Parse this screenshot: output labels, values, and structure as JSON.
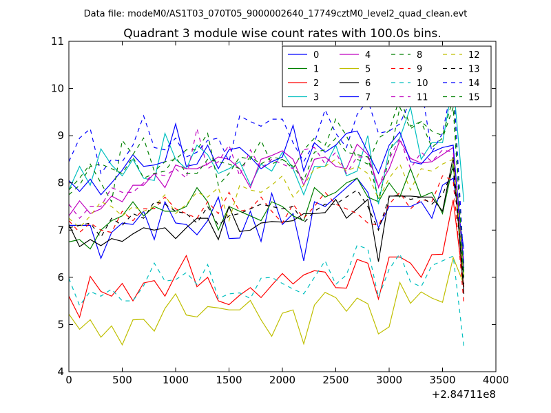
{
  "suptitle": "Data file: modeM0/AS1T03_070T05_9000002640_17749cztM0_level2_quad_clean.evt",
  "chart_data": {
    "type": "line",
    "title": "Quadrant 3 module wise count rates with 100.0s bins.",
    "xlabel": "",
    "ylabel": "",
    "x_offset_label": "+2.84711e8",
    "xlim": [
      0,
      4000
    ],
    "ylim": [
      4,
      11
    ],
    "xticks": [
      0,
      500,
      1000,
      1500,
      2000,
      2500,
      3000,
      3500,
      4000
    ],
    "yticks": [
      4,
      5,
      6,
      7,
      8,
      9,
      10,
      11
    ],
    "grid": false,
    "legend_position": "top-right",
    "x": [
      0,
      100,
      200,
      300,
      400,
      500,
      600,
      700,
      800,
      900,
      1000,
      1100,
      1200,
      1300,
      1400,
      1500,
      1600,
      1700,
      1800,
      1900,
      2000,
      2100,
      2200,
      2300,
      2400,
      2500,
      2600,
      2700,
      2800,
      2900,
      3000,
      3100,
      3200,
      3300,
      3400,
      3500,
      3600,
      3700
    ],
    "series": [
      {
        "name": "0",
        "color": "#0000ff",
        "dash": "solid",
        "values": [
          7.1,
          7.1,
          7.1,
          6.4,
          6.95,
          7.15,
          7.12,
          7.4,
          6.8,
          7.6,
          7.15,
          7.12,
          6.9,
          7.2,
          7.7,
          6.82,
          6.83,
          7.4,
          6.76,
          7.78,
          7.12,
          7.35,
          6.35,
          7.6,
          7.5,
          7.7,
          7.9,
          8.1,
          7.8,
          7.05,
          7.5,
          7.5,
          7.5,
          7.6,
          7.25,
          7.95,
          8.1,
          6.6
        ]
      },
      {
        "name": "1",
        "color": "#008000",
        "dash": "solid",
        "values": [
          6.75,
          6.8,
          6.6,
          7.0,
          7.2,
          7.3,
          7.6,
          7.3,
          7.5,
          7.4,
          7.4,
          7.5,
          7.9,
          7.6,
          7.0,
          7.5,
          7.4,
          7.3,
          7.2,
          7.6,
          7.5,
          7.3,
          7.2,
          7.9,
          7.7,
          7.8,
          8.0,
          8.1,
          7.7,
          7.6,
          8.0,
          7.7,
          8.3,
          7.7,
          7.8,
          7.35,
          8.4,
          6.0
        ]
      },
      {
        "name": "2",
        "color": "#ff0000",
        "dash": "solid",
        "values": [
          5.6,
          5.15,
          6.02,
          5.7,
          5.6,
          5.87,
          5.5,
          5.88,
          5.93,
          5.6,
          6.05,
          6.46,
          5.8,
          6.0,
          5.5,
          5.42,
          5.62,
          5.78,
          5.57,
          5.83,
          6.08,
          5.86,
          6.05,
          6.14,
          6.11,
          5.78,
          5.77,
          6.38,
          6.3,
          5.54,
          6.43,
          6.43,
          6.3,
          6.0,
          6.48,
          6.49,
          7.64,
          5.8
        ]
      },
      {
        "name": "3",
        "color": "#00bfbf",
        "dash": "solid",
        "values": [
          7.85,
          8.35,
          7.95,
          8.72,
          8.38,
          8.15,
          8.5,
          8.1,
          8.05,
          9.05,
          8.5,
          8.3,
          8.8,
          8.6,
          8.2,
          8.3,
          8.45,
          7.95,
          8.4,
          8.25,
          8.65,
          8.3,
          7.75,
          8.35,
          8.35,
          8.8,
          8.15,
          8.25,
          9.0,
          7.55,
          8.7,
          8.95,
          9.6,
          8.5,
          8.85,
          8.85,
          10.15,
          7.6
        ]
      },
      {
        "name": "4",
        "color": "#bf00bf",
        "dash": "solid",
        "values": [
          7.3,
          7.62,
          7.35,
          7.45,
          7.72,
          7.6,
          7.95,
          7.95,
          8.2,
          7.9,
          8.38,
          8.3,
          8.3,
          8.4,
          8.55,
          8.5,
          8.3,
          7.9,
          8.5,
          8.58,
          8.68,
          8.5,
          7.95,
          8.5,
          8.55,
          8.35,
          8.3,
          8.82,
          8.6,
          7.92,
          8.3,
          8.9,
          8.52,
          8.42,
          8.45,
          8.6,
          8.75,
          6.3
        ]
      },
      {
        "name": "5",
        "color": "#bfbf00",
        "dash": "solid",
        "values": [
          5.22,
          4.9,
          5.1,
          4.73,
          4.97,
          4.57,
          5.1,
          5.11,
          4.86,
          5.34,
          5.65,
          5.2,
          5.16,
          5.38,
          5.35,
          5.31,
          5.31,
          5.51,
          5.1,
          4.75,
          5.24,
          5.31,
          4.59,
          5.41,
          5.68,
          5.57,
          5.28,
          5.56,
          5.44,
          4.8,
          4.95,
          5.89,
          5.45,
          5.69,
          5.56,
          5.47,
          6.42,
          5.85
        ]
      },
      {
        "name": "6",
        "color": "#000000",
        "dash": "solid",
        "values": [
          7.12,
          6.65,
          6.8,
          6.67,
          6.82,
          6.76,
          6.92,
          7.05,
          7.0,
          7.05,
          6.82,
          7.05,
          7.25,
          7.25,
          6.8,
          7.5,
          6.97,
          7.0,
          7.15,
          7.18,
          7.17,
          7.2,
          7.35,
          7.35,
          7.37,
          7.65,
          7.25,
          7.45,
          7.65,
          6.33,
          7.72,
          7.72,
          7.72,
          7.7,
          7.7,
          7.4,
          8.55,
          5.65
        ]
      },
      {
        "name": "7",
        "color": "#0000ff",
        "dash": "solid",
        "values": [
          8.05,
          7.82,
          8.08,
          7.75,
          8.0,
          8.27,
          8.6,
          8.35,
          8.38,
          8.45,
          9.25,
          8.35,
          8.4,
          8.8,
          8.3,
          8.7,
          8.75,
          8.55,
          8.3,
          8.45,
          8.55,
          9.22,
          8.25,
          8.85,
          8.65,
          8.8,
          9.05,
          9.1,
          8.65,
          8.2,
          8.8,
          9.08,
          8.45,
          8.4,
          8.65,
          8.75,
          8.8,
          6.2
        ]
      },
      {
        "name": "8",
        "color": "#008000",
        "dash": "dashed",
        "values": [
          7.85,
          8.1,
          8.4,
          8.0,
          7.6,
          8.9,
          8.6,
          8.95,
          8.25,
          8.45,
          8.5,
          8.7,
          8.7,
          9.05,
          7.95,
          8.2,
          8.55,
          8.5,
          8.9,
          8.4,
          8.5,
          8.3,
          8.7,
          8.95,
          8.8,
          9.35,
          9.0,
          8.5,
          8.4,
          8.95,
          9.1,
          9.8,
          9.2,
          9.3,
          9.1,
          9.0,
          9.8,
          6.1
        ]
      },
      {
        "name": "9",
        "color": "#ff0000",
        "dash": "dashed",
        "values": [
          7.2,
          6.95,
          7.15,
          7.0,
          6.95,
          7.4,
          7.2,
          7.45,
          7.45,
          7.7,
          7.45,
          7.35,
          7.25,
          7.6,
          7.35,
          7.8,
          7.4,
          7.45,
          7.7,
          7.4,
          7.15,
          7.55,
          7.25,
          7.5,
          7.8,
          7.55,
          7.45,
          7.35,
          7.15,
          7.1,
          7.55,
          7.8,
          7.45,
          7.65,
          7.6,
          8.15,
          8.05,
          5.45
        ]
      },
      {
        "name": "10",
        "color": "#00bfbf",
        "dash": "dashed",
        "values": [
          5.98,
          5.4,
          5.7,
          5.6,
          5.75,
          5.5,
          5.5,
          5.82,
          6.3,
          5.92,
          5.95,
          6.1,
          5.85,
          6.27,
          5.55,
          5.65,
          5.67,
          5.55,
          5.98,
          6.0,
          5.87,
          5.75,
          5.65,
          6.0,
          6.35,
          5.85,
          6.05,
          6.68,
          6.6,
          5.58,
          6.17,
          6.5,
          5.9,
          5.8,
          6.25,
          6.35,
          6.45,
          4.52
        ]
      },
      {
        "name": "11",
        "color": "#bf00bf",
        "dash": "dashed",
        "values": [
          7.55,
          7.25,
          7.5,
          7.5,
          7.9,
          7.8,
          7.8,
          8.0,
          8.2,
          8.15,
          8.3,
          8.1,
          9.15,
          8.3,
          8.45,
          8.8,
          8.15,
          8.7,
          8.3,
          8.5,
          8.4,
          8.3,
          8.7,
          8.75,
          8.4,
          8.65,
          8.2,
          8.55,
          8.55,
          7.9,
          8.5,
          8.95,
          8.3,
          8.65,
          8.45,
          8.7,
          8.65,
          6.15
        ]
      },
      {
        "name": "12",
        "color": "#bfbf00",
        "dash": "dashed",
        "values": [
          7.25,
          7.05,
          7.3,
          7.6,
          7.5,
          7.3,
          7.5,
          7.4,
          7.5,
          7.75,
          7.35,
          7.55,
          7.8,
          7.7,
          7.9,
          7.2,
          7.95,
          7.85,
          7.8,
          7.95,
          8.15,
          7.7,
          7.95,
          8.3,
          8.35,
          8.5,
          8.25,
          8.35,
          8.2,
          7.65,
          8.1,
          8.4,
          7.85,
          8.3,
          8.25,
          8.4,
          8.5,
          6.05
        ]
      },
      {
        "name": "13",
        "color": "#000000",
        "dash": "dashed",
        "values": [
          7.05,
          7.1,
          7.15,
          6.85,
          7.25,
          7.1,
          7.35,
          7.25,
          7.6,
          7.55,
          7.4,
          7.35,
          7.15,
          7.5,
          7.1,
          7.3,
          7.35,
          7.45,
          7.55,
          7.5,
          7.45,
          7.5,
          7.15,
          7.4,
          7.55,
          7.55,
          7.7,
          7.85,
          7.5,
          7.0,
          7.7,
          7.75,
          7.65,
          7.7,
          7.55,
          7.75,
          8.3,
          5.85
        ]
      },
      {
        "name": "14",
        "color": "#0000ff",
        "dash": "dashed",
        "values": [
          8.45,
          8.95,
          9.15,
          8.2,
          8.5,
          8.45,
          8.8,
          9.42,
          8.75,
          8.7,
          8.95,
          8.55,
          8.65,
          8.9,
          8.95,
          8.45,
          9.42,
          9.3,
          9.2,
          9.35,
          9.35,
          8.85,
          8.45,
          8.85,
          9.55,
          9.05,
          8.75,
          9.45,
          9.75,
          9.05,
          9.1,
          9.25,
          9.75,
          10.05,
          8.65,
          9.05,
          10.2,
          6.25
        ]
      },
      {
        "name": "15",
        "color": "#008000",
        "dash": "dashed",
        "values": [
          7.75,
          7.95,
          8.35,
          8.4,
          8.3,
          8.2,
          8.55,
          8.1,
          8.2,
          8.25,
          8.55,
          8.2,
          8.2,
          8.5,
          8.45,
          8.4,
          8.3,
          8.55,
          8.4,
          8.55,
          8.5,
          8.35,
          8.05,
          8.65,
          8.7,
          8.95,
          8.65,
          8.6,
          8.55,
          7.65,
          8.5,
          9.6,
          9.15,
          9.3,
          8.75,
          8.95,
          9.6,
          6.05
        ]
      }
    ]
  }
}
